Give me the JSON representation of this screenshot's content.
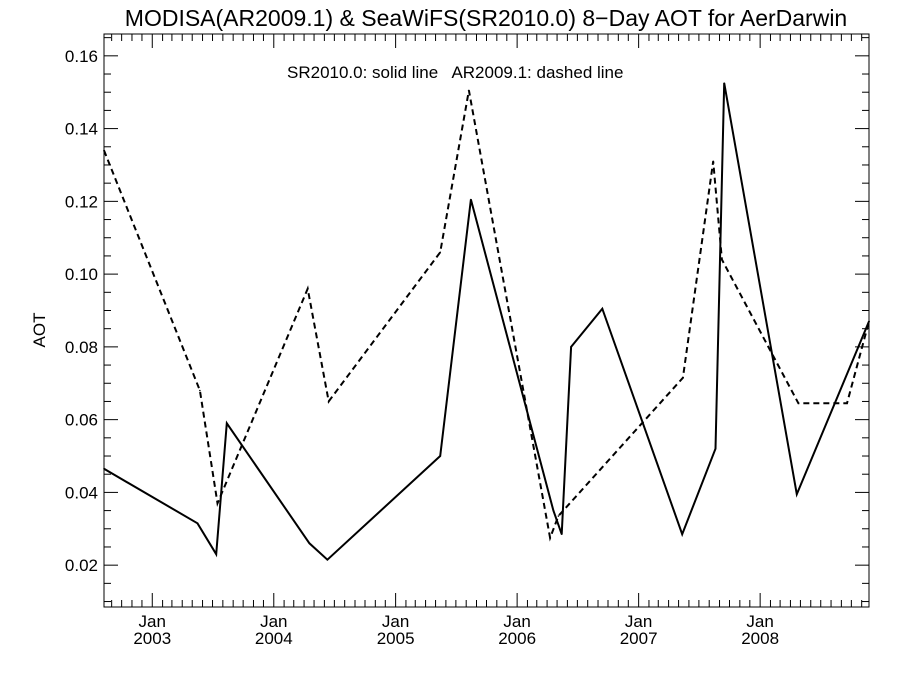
{
  "chart_data": {
    "type": "line",
    "title": "MODISA(AR2009.1) & SeaWiFS(SR2010.0) 8−Day AOT for AerDarwin",
    "xlabel": "",
    "ylabel": "AOT",
    "annotation": "SR2010.0: solid line   AR2009.1: dashed line",
    "xlim": [
      "2002-08-09",
      "2008-11-23"
    ],
    "ylim": [
      0.0085,
      0.166
    ],
    "yticks": [
      0.02,
      0.04,
      0.06,
      0.08,
      0.1,
      0.12,
      0.14,
      0.16
    ],
    "ytick_labels": [
      "0.02",
      "0.04",
      "0.06",
      "0.08",
      "0.10",
      "0.12",
      "0.14",
      "0.16"
    ],
    "xticks": [
      {
        "date": "2003-01-01",
        "month": "Jan",
        "year": "2003"
      },
      {
        "date": "2004-01-01",
        "month": "Jan",
        "year": "2004"
      },
      {
        "date": "2005-01-01",
        "month": "Jan",
        "year": "2005"
      },
      {
        "date": "2006-01-01",
        "month": "Jan",
        "year": "2006"
      },
      {
        "date": "2007-01-01",
        "month": "Jan",
        "year": "2007"
      },
      {
        "date": "2008-01-01",
        "month": "Jan",
        "year": "2008"
      }
    ],
    "grid": false,
    "series": [
      {
        "name": "SR2010.0",
        "style": "solid",
        "color": "#000000",
        "x": [
          "2002-08-09",
          "2003-05-17",
          "2003-07-12",
          "2003-08-13",
          "2004-04-17",
          "2004-06-10",
          "2005-05-15",
          "2005-08-15",
          "2006-04-20",
          "2006-05-15",
          "2006-06-12",
          "2006-09-14",
          "2007-05-12",
          "2007-08-20",
          "2007-09-15",
          "2008-04-20",
          "2008-11-23"
        ],
        "values": [
          0.0465,
          0.0315,
          0.023,
          0.059,
          0.026,
          0.0215,
          0.05,
          0.1205,
          0.035,
          0.0285,
          0.08,
          0.0905,
          0.0285,
          0.052,
          0.1525,
          0.0395,
          0.087
        ]
      },
      {
        "name": "AR2009.1",
        "style": "dashed",
        "color": "#000000",
        "x": [
          "2002-08-09",
          "2003-05-24",
          "2003-07-16",
          "2004-04-12",
          "2004-06-14",
          "2005-05-15",
          "2005-08-09",
          "2006-04-10",
          "2006-05-05",
          "2007-05-14",
          "2007-08-13",
          "2007-09-08",
          "2008-04-25",
          "2008-09-18",
          "2008-11-23"
        ],
        "values": [
          0.134,
          0.068,
          0.037,
          0.096,
          0.065,
          0.106,
          0.1505,
          0.0275,
          0.0335,
          0.0715,
          0.131,
          0.104,
          0.0645,
          0.0645,
          0.087
        ]
      }
    ]
  }
}
